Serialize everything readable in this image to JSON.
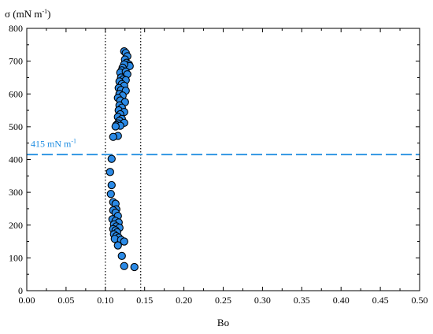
{
  "chart_data": {
    "type": "scatter",
    "xlabel": "Bo",
    "ylabel": {
      "base": "σ (mN m",
      "sup": "-1",
      "close": ")"
    },
    "xlim": [
      0.0,
      0.5
    ],
    "ylim": [
      0,
      800
    ],
    "x_ticks": [
      "0.00",
      "0.05",
      "0.10",
      "0.15",
      "0.20",
      "0.25",
      "0.30",
      "0.35",
      "0.40",
      "0.45",
      "0.50"
    ],
    "y_ticks": [
      "0",
      "100",
      "200",
      "300",
      "400",
      "500",
      "600",
      "700",
      "800"
    ],
    "reference_lines": {
      "horizontal": {
        "y": 415,
        "label": {
          "base": "415 mN m",
          "sup": "-1"
        },
        "color": "#1b8be0",
        "style": "dashed"
      },
      "vertical": [
        {
          "x": 0.1,
          "style": "dotted"
        },
        {
          "x": 0.145,
          "style": "dotted"
        }
      ]
    },
    "marker_color": "#2b8ae6",
    "marker_edge": "#000000",
    "grid": false,
    "series": [
      {
        "points": [
          [
            0.124,
            730
          ],
          [
            0.126,
            725
          ],
          [
            0.128,
            715
          ],
          [
            0.125,
            705
          ],
          [
            0.127,
            695
          ],
          [
            0.13,
            690
          ],
          [
            0.131,
            685
          ],
          [
            0.124,
            690
          ],
          [
            0.122,
            680
          ],
          [
            0.121,
            672
          ],
          [
            0.119,
            665
          ],
          [
            0.126,
            668
          ],
          [
            0.128,
            660
          ],
          [
            0.12,
            650
          ],
          [
            0.123,
            645
          ],
          [
            0.126,
            642
          ],
          [
            0.118,
            638
          ],
          [
            0.121,
            630
          ],
          [
            0.124,
            625
          ],
          [
            0.117,
            618
          ],
          [
            0.12,
            612
          ],
          [
            0.126,
            610
          ],
          [
            0.118,
            600
          ],
          [
            0.122,
            595
          ],
          [
            0.116,
            588
          ],
          [
            0.119,
            580
          ],
          [
            0.125,
            575
          ],
          [
            0.118,
            565
          ],
          [
            0.121,
            558
          ],
          [
            0.117,
            550
          ],
          [
            0.124,
            545
          ],
          [
            0.119,
            538
          ],
          [
            0.116,
            530
          ],
          [
            0.121,
            524
          ],
          [
            0.118,
            518
          ],
          [
            0.124,
            512
          ],
          [
            0.116,
            510
          ],
          [
            0.114,
            505
          ],
          [
            0.119,
            503
          ],
          [
            0.113,
            501
          ],
          [
            0.116,
            472
          ],
          [
            0.11,
            469
          ],
          [
            0.108,
            402
          ],
          [
            0.106,
            362
          ],
          [
            0.108,
            322
          ],
          [
            0.107,
            295
          ],
          [
            0.11,
            270
          ],
          [
            0.113,
            265
          ],
          [
            0.114,
            248
          ],
          [
            0.11,
            245
          ],
          [
            0.113,
            238
          ],
          [
            0.116,
            228
          ],
          [
            0.109,
            218
          ],
          [
            0.113,
            213
          ],
          [
            0.117,
            208
          ],
          [
            0.111,
            202
          ],
          [
            0.114,
            196
          ],
          [
            0.118,
            192
          ],
          [
            0.11,
            188
          ],
          [
            0.113,
            184
          ],
          [
            0.115,
            178
          ],
          [
            0.111,
            172
          ],
          [
            0.114,
            166
          ],
          [
            0.117,
            162
          ],
          [
            0.112,
            158
          ],
          [
            0.12,
            155
          ],
          [
            0.124,
            150
          ],
          [
            0.116,
            138
          ],
          [
            0.121,
            106
          ],
          [
            0.124,
            75
          ],
          [
            0.137,
            72
          ]
        ]
      }
    ]
  }
}
